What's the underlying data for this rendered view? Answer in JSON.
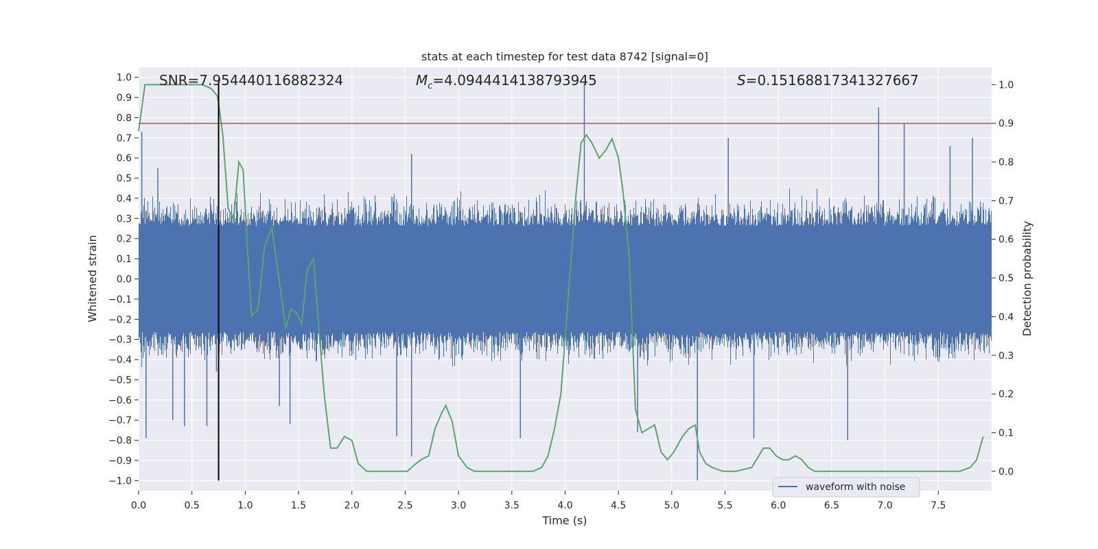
{
  "chart_data": {
    "type": "line",
    "title": "stats at each timestep for test data 8742 [signal=0]",
    "xlabel": "Time (s)",
    "ylabel_left": "Whitened strain",
    "ylabel_right": "Detection probability",
    "xlim": [
      0.0,
      8.0
    ],
    "ylim_left": [
      -1.05,
      1.05
    ],
    "ylim_right": [
      -0.05,
      1.045
    ],
    "x_ticks": [
      "0.0",
      "0.5",
      "1.0",
      "1.5",
      "2.0",
      "2.5",
      "3.0",
      "3.5",
      "4.0",
      "4.5",
      "5.0",
      "5.5",
      "6.0",
      "6.5",
      "7.0",
      "7.5"
    ],
    "left_ticks": [
      "1.0",
      "0.9",
      "0.8",
      "0.7",
      "0.6",
      "0.5",
      "0.4",
      "0.3",
      "0.2",
      "0.1",
      "0.0",
      "-0.1",
      "-0.2",
      "-0.3",
      "-0.4",
      "-0.5",
      "-0.6",
      "-0.7",
      "-0.8",
      "-0.9",
      "-1.0"
    ],
    "right_ticks": [
      "1.0",
      "0.9",
      "0.8",
      "0.7",
      "0.6",
      "0.5",
      "0.4",
      "0.3",
      "0.2",
      "0.1",
      "0.0"
    ],
    "grid": true,
    "legend_position": "lower-right",
    "background_color": "#eaeaf2",
    "annotations": {
      "snr": "SNR=7.954440116882324",
      "mc_symbol": "M",
      "mc_sub": "c",
      "mc_value": "=4.0944414138793945",
      "s_symbol": "S",
      "s_value": "=0.15168817341327667"
    },
    "series": [
      {
        "name": "waveform with noise",
        "color": "#4c72b0",
        "axis": "left",
        "style": "noise",
        "typical_envelope": [
          -0.35,
          0.35
        ],
        "spikes": [
          {
            "x": 0.03,
            "y": 0.73
          },
          {
            "x": 0.07,
            "y": -0.79
          },
          {
            "x": 0.18,
            "y": 0.55
          },
          {
            "x": 0.32,
            "y": -0.7
          },
          {
            "x": 0.43,
            "y": -0.73
          },
          {
            "x": 0.64,
            "y": -0.73
          },
          {
            "x": 0.73,
            "y": -0.46
          },
          {
            "x": 1.32,
            "y": -0.63
          },
          {
            "x": 1.42,
            "y": -0.72
          },
          {
            "x": 2.42,
            "y": -0.78
          },
          {
            "x": 2.56,
            "y": -0.88
          },
          {
            "x": 2.56,
            "y": 0.62
          },
          {
            "x": 3.58,
            "y": -0.79
          },
          {
            "x": 4.18,
            "y": 0.97
          },
          {
            "x": 4.68,
            "y": -0.76
          },
          {
            "x": 5.24,
            "y": -1.0
          },
          {
            "x": 5.53,
            "y": 0.7
          },
          {
            "x": 5.77,
            "y": -0.79
          },
          {
            "x": 6.65,
            "y": -0.8
          },
          {
            "x": 6.94,
            "y": 0.85
          },
          {
            "x": 7.18,
            "y": 0.77
          },
          {
            "x": 7.61,
            "y": 0.66
          },
          {
            "x": 7.82,
            "y": 0.7
          }
        ]
      },
      {
        "name": "",
        "color": "#55a868",
        "axis": "right",
        "x": [
          0.0,
          0.06,
          0.1,
          0.2,
          0.3,
          0.4,
          0.5,
          0.6,
          0.68,
          0.74,
          0.79,
          0.84,
          0.89,
          0.94,
          0.98,
          1.02,
          1.06,
          1.12,
          1.18,
          1.25,
          1.32,
          1.38,
          1.43,
          1.48,
          1.53,
          1.58,
          1.64,
          1.69,
          1.74,
          1.8,
          1.86,
          1.93,
          2.0,
          2.06,
          2.14,
          2.25,
          2.4,
          2.52,
          2.6,
          2.65,
          2.72,
          2.78,
          2.84,
          2.88,
          2.94,
          3.0,
          3.08,
          3.15,
          3.25,
          3.4,
          3.55,
          3.7,
          3.78,
          3.84,
          3.9,
          3.96,
          4.04,
          4.1,
          4.15,
          4.2,
          4.25,
          4.32,
          4.38,
          4.44,
          4.5,
          4.54,
          4.6,
          4.66,
          4.72,
          4.78,
          4.84,
          4.9,
          4.96,
          5.02,
          5.1,
          5.16,
          5.22,
          5.26,
          5.32,
          5.38,
          5.48,
          5.6,
          5.75,
          5.86,
          5.92,
          5.98,
          6.04,
          6.1,
          6.16,
          6.22,
          6.28,
          6.34,
          6.42,
          6.55,
          6.8,
          7.05,
          7.3,
          7.55,
          7.7,
          7.8,
          7.86,
          7.92
        ],
        "y": [
          0.88,
          1.0,
          1.0,
          1.0,
          1.0,
          1.0,
          1.0,
          1.0,
          0.99,
          0.97,
          0.87,
          0.68,
          0.65,
          0.8,
          0.78,
          0.58,
          0.4,
          0.42,
          0.58,
          0.63,
          0.49,
          0.37,
          0.42,
          0.41,
          0.38,
          0.52,
          0.55,
          0.37,
          0.2,
          0.06,
          0.06,
          0.09,
          0.08,
          0.02,
          0.0,
          0.0,
          0.0,
          0.0,
          0.02,
          0.03,
          0.04,
          0.11,
          0.15,
          0.17,
          0.13,
          0.04,
          0.01,
          0.0,
          0.0,
          0.0,
          0.0,
          0.0,
          0.01,
          0.04,
          0.11,
          0.2,
          0.49,
          0.71,
          0.85,
          0.87,
          0.85,
          0.81,
          0.83,
          0.86,
          0.81,
          0.73,
          0.56,
          0.16,
          0.1,
          0.11,
          0.12,
          0.05,
          0.03,
          0.05,
          0.09,
          0.11,
          0.12,
          0.05,
          0.02,
          0.01,
          0.0,
          0.0,
          0.01,
          0.06,
          0.06,
          0.04,
          0.03,
          0.03,
          0.04,
          0.03,
          0.01,
          0.0,
          0.0,
          0.0,
          0.0,
          0.0,
          0.0,
          0.0,
          0.0,
          0.01,
          0.03,
          0.09
        ]
      }
    ],
    "threshold_line": {
      "value": 0.9,
      "axis": "right",
      "color": "#c44e52"
    },
    "marker_line": {
      "x": 0.75,
      "y_range": [
        -1.0,
        0.98
      ],
      "color": "#000000"
    }
  }
}
